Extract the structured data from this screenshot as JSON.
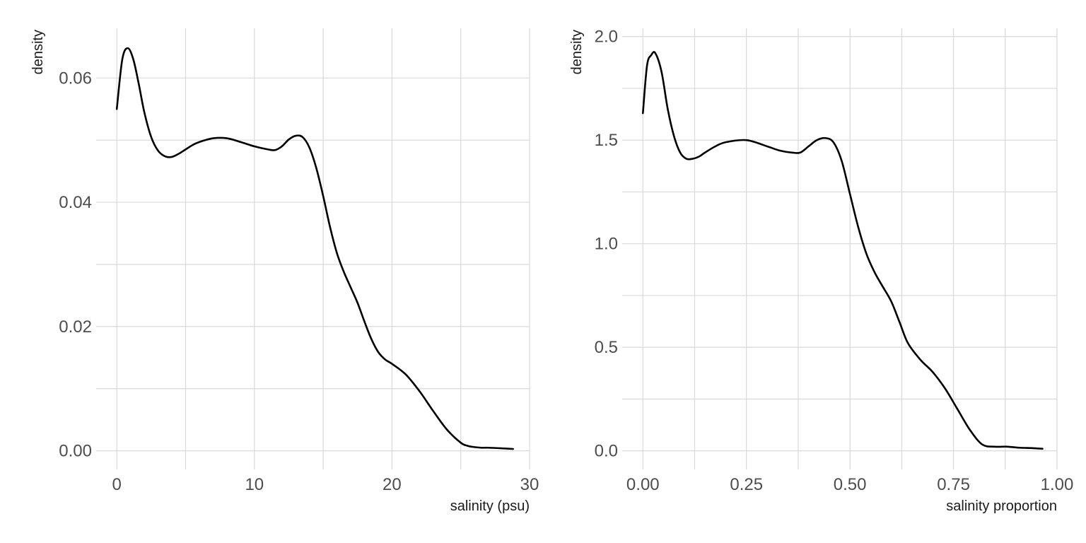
{
  "chart_data": [
    {
      "type": "line",
      "xlabel": "salinity (psu)",
      "ylabel": "density",
      "xlim": [
        -1.5,
        30.0
      ],
      "ylim": [
        -0.003,
        0.068
      ],
      "xticks": [
        0,
        10,
        20,
        30
      ],
      "xtick_labels": [
        "0",
        "10",
        "20",
        "30"
      ],
      "yticks": [
        0.0,
        0.02,
        0.04,
        0.06
      ],
      "ytick_labels": [
        "0.00",
        "0.02",
        "0.04",
        "0.06"
      ],
      "x_minor": [
        5,
        15,
        25
      ],
      "y_minor": [
        0.01,
        0.03,
        0.05
      ],
      "grid": true,
      "series": [
        {
          "x": [
            0,
            0.4,
            0.8,
            1.2,
            1.6,
            2.0,
            2.5,
            3.0,
            3.5,
            4.0,
            4.5,
            5.0,
            5.5,
            6.0,
            7.0,
            8.0,
            9.0,
            10.0,
            11.0,
            11.5,
            12.0,
            12.5,
            13.0,
            13.5,
            14.0,
            14.5,
            15.0,
            15.5,
            16.0,
            16.5,
            17.0,
            17.5,
            18.0,
            18.5,
            19.0,
            19.5,
            20.0,
            21.0,
            22.0,
            23.0,
            24.0,
            25.0,
            25.5,
            26.0,
            26.5,
            27.0,
            28.0,
            28.8
          ],
          "y": [
            0.055,
            0.063,
            0.0648,
            0.063,
            0.059,
            0.0545,
            0.0505,
            0.0483,
            0.0474,
            0.0473,
            0.0478,
            0.0485,
            0.0492,
            0.0497,
            0.0503,
            0.0503,
            0.0497,
            0.049,
            0.0485,
            0.0484,
            0.049,
            0.0501,
            0.0507,
            0.0505,
            0.0488,
            0.0455,
            0.041,
            0.036,
            0.0318,
            0.0288,
            0.0263,
            0.0238,
            0.0208,
            0.018,
            0.0159,
            0.0147,
            0.014,
            0.0123,
            0.0096,
            0.0064,
            0.0034,
            0.0013,
            0.0008,
            0.0006,
            0.0005,
            0.0005,
            0.0004,
            0.0003
          ]
        }
      ]
    },
    {
      "type": "line",
      "xlabel": "salinity proportion",
      "ylabel": "density",
      "xlim": [
        -0.05,
        1.0
      ],
      "ylim": [
        -0.09,
        2.04
      ],
      "xticks": [
        0.0,
        0.25,
        0.5,
        0.75,
        1.0
      ],
      "xtick_labels": [
        "0.00",
        "0.25",
        "0.50",
        "0.75",
        "1.00"
      ],
      "yticks": [
        0.0,
        0.5,
        1.0,
        1.5,
        2.0
      ],
      "ytick_labels": [
        "0.0",
        "0.5",
        "1.0",
        "1.5",
        "2.0"
      ],
      "x_minor": [
        0.125,
        0.375,
        0.625,
        0.875
      ],
      "y_minor": [
        0.25,
        0.75,
        1.25,
        1.75
      ],
      "grid": true,
      "series": [
        {
          "x": [
            0.0,
            0.01,
            0.02,
            0.03,
            0.045,
            0.06,
            0.075,
            0.09,
            0.105,
            0.12,
            0.135,
            0.15,
            0.175,
            0.2,
            0.25,
            0.3,
            0.33,
            0.36,
            0.38,
            0.4,
            0.42,
            0.44,
            0.46,
            0.48,
            0.5,
            0.52,
            0.54,
            0.56,
            0.58,
            0.6,
            0.62,
            0.64,
            0.67,
            0.7,
            0.73,
            0.76,
            0.79,
            0.82,
            0.85,
            0.88,
            0.91,
            0.94,
            0.965
          ],
          "y": [
            1.63,
            1.86,
            1.91,
            1.92,
            1.83,
            1.65,
            1.52,
            1.44,
            1.41,
            1.41,
            1.42,
            1.44,
            1.47,
            1.49,
            1.5,
            1.47,
            1.45,
            1.44,
            1.44,
            1.47,
            1.5,
            1.51,
            1.49,
            1.4,
            1.24,
            1.08,
            0.95,
            0.86,
            0.79,
            0.72,
            0.62,
            0.52,
            0.44,
            0.38,
            0.3,
            0.2,
            0.1,
            0.03,
            0.02,
            0.02,
            0.015,
            0.013,
            0.01
          ]
        }
      ]
    }
  ]
}
